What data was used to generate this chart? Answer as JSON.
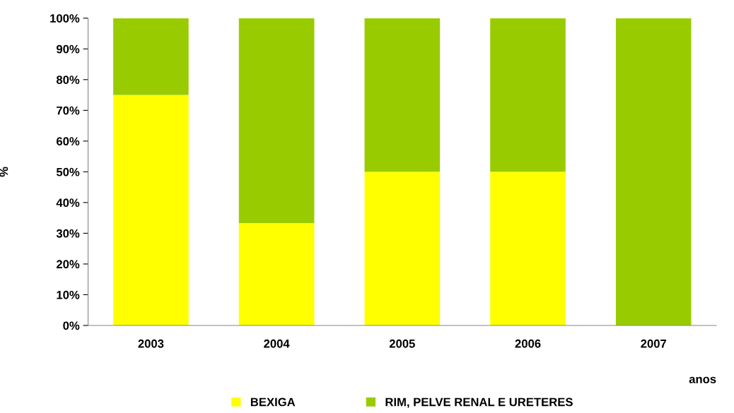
{
  "chart_data": {
    "type": "bar",
    "stacked": true,
    "xlabel": "anos",
    "ylabel": "%",
    "categories": [
      "2003",
      "2004",
      "2005",
      "2006",
      "2007"
    ],
    "series": [
      {
        "name": "BEXIGA",
        "color": "#ffff00",
        "values": [
          75,
          33.3,
          50,
          50,
          0
        ]
      },
      {
        "name": "RIM, PELVE RENAL E URETERES",
        "color": "#99cc00",
        "values": [
          25,
          66.7,
          50,
          50,
          100
        ]
      }
    ],
    "ylim": [
      0,
      100
    ],
    "yticks": [
      {
        "value": 0,
        "label": "0%"
      },
      {
        "value": 10,
        "label": "10%"
      },
      {
        "value": 20,
        "label": "20%"
      },
      {
        "value": 30,
        "label": "30%"
      },
      {
        "value": 40,
        "label": "40%"
      },
      {
        "value": 50,
        "label": "50%"
      },
      {
        "value": 60,
        "label": "60%"
      },
      {
        "value": 70,
        "label": "70%"
      },
      {
        "value": 80,
        "label": "80%"
      },
      {
        "value": 90,
        "label": "90%"
      },
      {
        "value": 100,
        "label": "100%"
      }
    ],
    "grid": false,
    "legend": "bottom"
  }
}
